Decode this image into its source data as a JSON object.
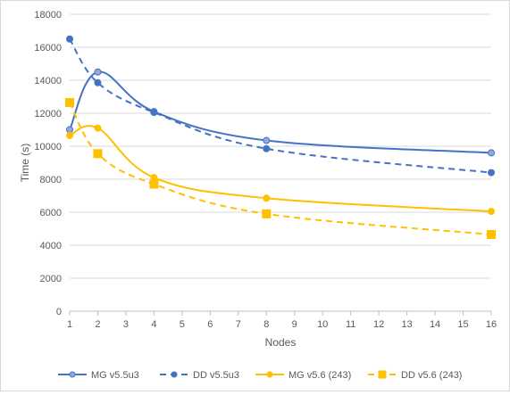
{
  "chart_data": {
    "type": "line",
    "title": "",
    "xlabel": "Nodes",
    "ylabel": "Time (s)",
    "xlim": [
      1,
      16
    ],
    "ylim": [
      0,
      18000
    ],
    "xticks": [
      1,
      2,
      3,
      4,
      5,
      6,
      7,
      8,
      9,
      10,
      11,
      12,
      13,
      14,
      15,
      16
    ],
    "yticks": [
      0,
      2000,
      4000,
      6000,
      8000,
      10000,
      12000,
      14000,
      16000,
      18000
    ],
    "grid": "horizontal",
    "legend_position": "bottom",
    "series": [
      {
        "name": "MG v5.5u3",
        "color": "#4472C4",
        "marker_fill": "#8FAADC",
        "marker": "circle",
        "dash": "solid",
        "x": [
          1,
          2,
          4,
          8,
          16
        ],
        "y": [
          11000,
          14500,
          12100,
          10350,
          9600
        ]
      },
      {
        "name": "DD v5.5u3",
        "color": "#4472C4",
        "marker_fill": "#4472C4",
        "marker": "circle",
        "dash": "dashed",
        "x": [
          1,
          2,
          4,
          8,
          16
        ],
        "y": [
          16500,
          13850,
          12050,
          9850,
          8400
        ]
      },
      {
        "name": "MG v5.6 (243)",
        "color": "#FFC000",
        "marker_fill": "#FFC000",
        "marker": "circle",
        "dash": "solid",
        "x": [
          1,
          2,
          4,
          8,
          16
        ],
        "y": [
          10650,
          11100,
          8100,
          6850,
          6050
        ]
      },
      {
        "name": "DD v5.6 (243)",
        "color": "#FFC000",
        "marker_fill": "#FFC000",
        "marker": "square",
        "dash": "dashed",
        "x": [
          1,
          2,
          4,
          8,
          16
        ],
        "y": [
          12650,
          9550,
          7700,
          5900,
          4650
        ]
      }
    ]
  }
}
